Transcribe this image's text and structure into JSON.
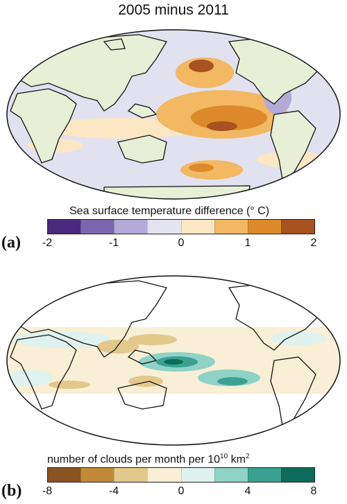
{
  "title": "2005 minus 2011",
  "panel_a": {
    "letter": "(a)",
    "colorbar_title": "Sea surface temperature difference (° C)",
    "ticks": [
      "-2",
      "-1",
      "0",
      "1",
      "2"
    ],
    "colors": [
      "#4a2a7e",
      "#7b66ad",
      "#b3aad7",
      "#e4e3f0",
      "#fce7c4",
      "#f2b862",
      "#dc8a2a",
      "#a7521f"
    ],
    "land_color": "#e7efd6",
    "ocean_base": "#e2e1ef"
  },
  "panel_b": {
    "letter": "(b)",
    "colorbar_title_pre": "number of clouds per month per 10",
    "colorbar_sup": "10",
    "colorbar_title_post": " km",
    "colorbar_sup2": "2",
    "ticks": [
      "-8",
      "-4",
      "0",
      "4",
      "8"
    ],
    "colors": [
      "#8a5322",
      "#c08a38",
      "#e2c88a",
      "#f8efd6",
      "#dff2ee",
      "#8fd2c6",
      "#3aa191",
      "#0e6b5a"
    ]
  }
}
